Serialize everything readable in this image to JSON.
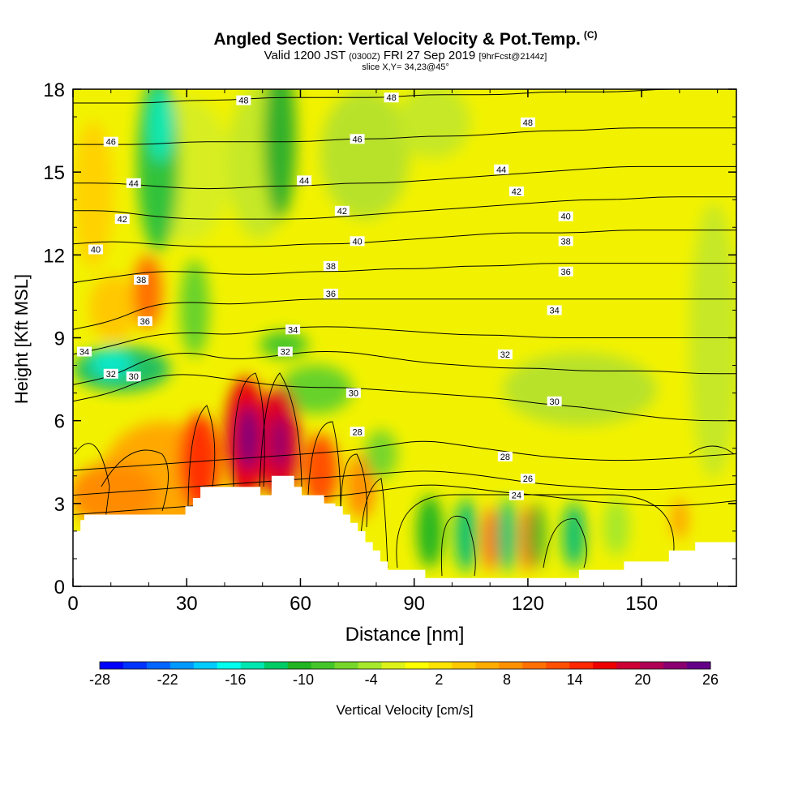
{
  "chart_data": {
    "type": "heatmap",
    "title": "Angled Section: Vertical Velocity & Pot.Temp.",
    "title_mark": "(C)",
    "subtitle_valid": "Valid 1200 JST",
    "subtitle_utc": "(0300Z)",
    "subtitle_date": "FRI 27 Sep 2019",
    "subtitle_fcst": "[9hrFcst@2144z]",
    "slice_label": "slice X,Y= 34,23@45°",
    "xlabel": "Distance [nm]",
    "ylabel": "Height [Kft MSL]",
    "xlim": [
      0,
      175
    ],
    "ylim": [
      0,
      18
    ],
    "x_ticks": [
      "0",
      "30",
      "60",
      "90",
      "120",
      "150"
    ],
    "y_ticks": [
      "0",
      "3",
      "6",
      "9",
      "12",
      "15",
      "18"
    ],
    "colorbar": {
      "label": "Vertical Velocity [cm/s]",
      "tick_labels": [
        "-28",
        "-22",
        "-16",
        "-10",
        "-4",
        "2",
        "8",
        "14",
        "20",
        "26"
      ],
      "colors": [
        "#0000ff",
        "#0033ff",
        "#0066ff",
        "#0099ff",
        "#00ccff",
        "#00ffee",
        "#00e6b0",
        "#00cc66",
        "#22b522",
        "#44c62a",
        "#77d62a",
        "#a6e82a",
        "#ddf218",
        "#ffff00",
        "#ffe400",
        "#ffc800",
        "#ffac00",
        "#ff9000",
        "#ff7000",
        "#ff5000",
        "#ff2800",
        "#ee0000",
        "#cc0033",
        "#b00055",
        "#8a0070",
        "#640088"
      ]
    },
    "isentropes": [
      {
        "label": "24",
        "h": [
          2.6,
          2.7,
          2.8,
          2.9,
          3.0,
          3.1,
          3.2,
          3.3,
          3.5,
          3.7,
          3.6,
          3.4,
          3.3,
          3.1,
          3.0,
          2.9,
          2.95,
          3.1
        ]
      },
      {
        "label": "26",
        "h": [
          3.3,
          3.4,
          3.5,
          3.6,
          3.7,
          3.8,
          3.9,
          4.0,
          4.1,
          4.2,
          4.1,
          3.9,
          3.7,
          3.6,
          3.5,
          3.5,
          3.6,
          3.7
        ]
      },
      {
        "label": "28",
        "h": [
          4.2,
          4.3,
          4.4,
          4.5,
          4.6,
          4.7,
          4.8,
          4.9,
          5.1,
          5.3,
          5.1,
          4.9,
          4.7,
          4.6,
          4.55,
          4.6,
          4.7,
          4.8
        ]
      },
      {
        "label": "30",
        "h": [
          6.7,
          7.0,
          7.6,
          7.7,
          7.5,
          7.3,
          7.2,
          7.2,
          7.1,
          7.0,
          6.9,
          6.8,
          6.6,
          6.5,
          6.3,
          6.1,
          6.0,
          6.0
        ]
      },
      {
        "label": "32",
        "h": [
          7.3,
          7.6,
          8.3,
          8.5,
          8.2,
          8.3,
          8.5,
          8.5,
          8.3,
          8.1,
          8.0,
          7.9,
          7.9,
          7.8,
          7.8,
          7.8,
          7.7,
          7.7
        ]
      },
      {
        "label": "34",
        "h": [
          8.4,
          8.7,
          9.1,
          9.2,
          9.1,
          9.3,
          9.4,
          9.4,
          9.3,
          9.2,
          9.1,
          9.1,
          9.0,
          9.0,
          9.0,
          9.0,
          9.0,
          9.0
        ]
      },
      {
        "label": "36",
        "h": [
          9.3,
          9.6,
          10.2,
          10.3,
          10.2,
          10.3,
          10.4,
          10.4,
          10.4,
          10.4,
          10.4,
          10.4,
          10.4,
          10.4,
          10.4,
          10.4,
          10.4,
          10.4
        ]
      },
      {
        "label": "38",
        "h": [
          11.0,
          11.2,
          11.4,
          11.4,
          11.3,
          11.3,
          11.4,
          11.4,
          11.5,
          11.5,
          11.6,
          11.6,
          11.7,
          11.7,
          11.7,
          11.7,
          11.7,
          11.7
        ]
      },
      {
        "label": "40",
        "h": [
          12.4,
          12.5,
          12.4,
          12.3,
          12.3,
          12.3,
          12.4,
          12.4,
          12.5,
          12.6,
          12.7,
          12.8,
          12.8,
          12.8,
          12.9,
          12.9,
          12.9,
          12.9
        ]
      },
      {
        "label": "42",
        "h": [
          13.6,
          13.6,
          13.4,
          13.3,
          13.3,
          13.3,
          13.3,
          13.4,
          13.5,
          13.6,
          13.7,
          13.8,
          13.9,
          14.0,
          14.0,
          14.1,
          14.1,
          14.1
        ]
      },
      {
        "label": "44",
        "h": [
          14.6,
          14.6,
          14.5,
          14.4,
          14.4,
          14.5,
          14.5,
          14.6,
          14.6,
          14.7,
          14.8,
          14.9,
          15.0,
          15.1,
          15.2,
          15.2,
          15.2,
          15.2
        ]
      },
      {
        "label": "46",
        "h": [
          16.0,
          16.0,
          16.0,
          16.1,
          16.1,
          16.1,
          16.1,
          16.2,
          16.2,
          16.3,
          16.3,
          16.4,
          16.5,
          16.5,
          16.6,
          16.6,
          16.6,
          16.6
        ]
      },
      {
        "label": "48",
        "h": [
          17.5,
          17.5,
          17.5,
          17.6,
          17.6,
          17.7,
          17.7,
          17.7,
          17.7,
          17.8,
          17.8,
          17.8,
          17.9,
          17.9,
          17.9,
          18.0,
          18.0,
          18.0
        ]
      }
    ],
    "isentrope_labels": [
      {
        "label": "48",
        "x": 45,
        "y": 17.6
      },
      {
        "label": "48",
        "x": 84,
        "y": 17.7
      },
      {
        "label": "48",
        "x": 120,
        "y": 16.8
      },
      {
        "label": "46",
        "x": 10,
        "y": 16.1
      },
      {
        "label": "46",
        "x": 75,
        "y": 16.2
      },
      {
        "label": "44",
        "x": 16,
        "y": 14.6
      },
      {
        "label": "44",
        "x": 61,
        "y": 14.7
      },
      {
        "label": "44",
        "x": 113,
        "y": 15.1
      },
      {
        "label": "42",
        "x": 13,
        "y": 13.3
      },
      {
        "label": "42",
        "x": 71,
        "y": 13.6
      },
      {
        "label": "42",
        "x": 117,
        "y": 14.3
      },
      {
        "label": "40",
        "x": 6,
        "y": 12.2
      },
      {
        "label": "40",
        "x": 75,
        "y": 12.5
      },
      {
        "label": "40",
        "x": 130,
        "y": 13.4
      },
      {
        "label": "38",
        "x": 18,
        "y": 11.1
      },
      {
        "label": "38",
        "x": 68,
        "y": 11.6
      },
      {
        "label": "38",
        "x": 130,
        "y": 12.5
      },
      {
        "label": "36",
        "x": 19,
        "y": 9.6
      },
      {
        "label": "36",
        "x": 68,
        "y": 10.6
      },
      {
        "label": "36",
        "x": 130,
        "y": 11.4
      },
      {
        "label": "34",
        "x": 3,
        "y": 8.5
      },
      {
        "label": "34",
        "x": 58,
        "y": 9.3
      },
      {
        "label": "34",
        "x": 127,
        "y": 10.0
      },
      {
        "label": "32",
        "x": 10,
        "y": 7.7
      },
      {
        "label": "32",
        "x": 56,
        "y": 8.5
      },
      {
        "label": "32",
        "x": 114,
        "y": 8.4
      },
      {
        "label": "30",
        "x": 16,
        "y": 7.6
      },
      {
        "label": "30",
        "x": 74,
        "y": 7.0
      },
      {
        "label": "30",
        "x": 127,
        "y": 6.7
      },
      {
        "label": "28",
        "x": 75,
        "y": 5.6
      },
      {
        "label": "28",
        "x": 114,
        "y": 4.7
      },
      {
        "label": "26",
        "x": 120,
        "y": 3.9
      },
      {
        "label": "24",
        "x": 117,
        "y": 3.3
      }
    ],
    "terrain_h": [
      2.0,
      2.0,
      2.4,
      2.6,
      2.6,
      2.6,
      2.6,
      2.6,
      2.6,
      2.6,
      2.6,
      2.6,
      2.6,
      2.6,
      2.6,
      2.6,
      2.6,
      2.6,
      2.6,
      2.6,
      2.6,
      2.6,
      2.6,
      2.6,
      2.6,
      2.6,
      2.6,
      2.6,
      2.6,
      2.6,
      2.9,
      2.9,
      3.2,
      3.2,
      3.6,
      3.6,
      3.6,
      3.6,
      3.6,
      3.6,
      3.6,
      3.6,
      3.6,
      3.6,
      3.6,
      3.6,
      3.6,
      3.6,
      3.6,
      3.6,
      3.3,
      3.3,
      3.3,
      4.0,
      4.0,
      4.0,
      4.0,
      4.0,
      4.0,
      3.6,
      3.6,
      3.3,
      3.3,
      3.3,
      3.3,
      3.3,
      3.3,
      3.0,
      3.0,
      3.0,
      2.9,
      2.9,
      2.6,
      2.6,
      2.3,
      2.3,
      2.0,
      2.0,
      1.6,
      1.6,
      1.3,
      1.3,
      0.9,
      0.9,
      0.6,
      0.6,
      0.6,
      0.6,
      0.6,
      0.6,
      0.6,
      0.6,
      0.6,
      0.6,
      0.3,
      0.3,
      0.3,
      0.3,
      0.3,
      0.3,
      0.3,
      0.3,
      0.3,
      0.3,
      0.3,
      0.3,
      0.3,
      0.3,
      0.3,
      0.3,
      0.3,
      0.3,
      0.3,
      0.3,
      0.3,
      0.3,
      0.3,
      0.3,
      0.3,
      0.3,
      0.3,
      0.3,
      0.3,
      0.3,
      0.3,
      0.3,
      0.3,
      0.3,
      0.3,
      0.3,
      0.3,
      0.3,
      0.3,
      0.3,
      0.3,
      0.6,
      0.6,
      0.6,
      0.6,
      0.6,
      0.6,
      0.6,
      0.6,
      0.6,
      0.6,
      0.6,
      0.6,
      0.9,
      0.9,
      0.9,
      0.9,
      0.9,
      0.9,
      0.9,
      0.9,
      0.9,
      0.9,
      0.9,
      0.9,
      1.3,
      1.3,
      1.3,
      1.3,
      1.3,
      1.3,
      1.3,
      1.6,
      1.6,
      1.6,
      1.6,
      1.6,
      1.6,
      1.6,
      1.6,
      1.6,
      1.6,
      1.6
    ]
  }
}
